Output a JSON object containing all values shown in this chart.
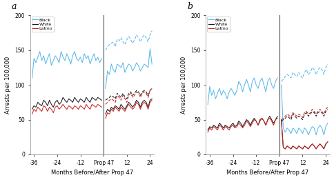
{
  "title_a": "a",
  "title_b": "b",
  "xlabel": "Months Before/After Prop 47",
  "ylabel": "Arrests per 100,000",
  "ylim": [
    0,
    200
  ],
  "yticks": [
    0,
    50,
    100,
    150,
    200
  ],
  "xtick_pos": [
    -36,
    -24,
    -12,
    0,
    12,
    24
  ],
  "xticklabels": [
    "-36",
    "-24",
    "-12",
    "Prop 47",
    "12",
    "24"
  ],
  "legend_labels": [
    "Black",
    "White",
    "Latino"
  ],
  "blue": "#5bb8e8",
  "black_col": "#1a1a1a",
  "red_col": "#cc2222",
  "background": "#ffffff",
  "panel_a": {
    "black_before": [
      110,
      138,
      132,
      140,
      148,
      135,
      142,
      130,
      138,
      145,
      128,
      135,
      142,
      138,
      132,
      148,
      140,
      135,
      145,
      138,
      130,
      142,
      148,
      138,
      135,
      140,
      132,
      145,
      138,
      142,
      130,
      138,
      145,
      135,
      140,
      132,
      138
    ],
    "black_after_act": [
      95,
      120,
      115,
      130,
      122,
      118,
      130,
      128,
      125,
      132,
      118,
      125,
      130,
      128,
      120,
      125,
      132,
      128,
      120,
      125,
      130,
      128,
      125,
      152,
      130
    ],
    "black_after_trend": [
      150,
      155,
      158,
      160,
      162,
      155,
      165,
      163,
      168,
      162,
      158,
      165,
      170,
      165,
      160,
      165,
      172,
      168,
      162,
      168,
      172,
      168,
      162,
      172,
      178
    ],
    "white_before": [
      65,
      70,
      68,
      75,
      72,
      70,
      78,
      75,
      70,
      78,
      72,
      68,
      75,
      78,
      72,
      75,
      82,
      78,
      75,
      80,
      78,
      75,
      82,
      78,
      75,
      80,
      78,
      75,
      82,
      78,
      75,
      82,
      80,
      78,
      82,
      80,
      78
    ],
    "white_after_act": [
      58,
      65,
      62,
      68,
      65,
      70,
      68,
      65,
      72,
      68,
      65,
      70,
      75,
      72,
      68,
      72,
      78,
      75,
      68,
      75,
      78,
      75,
      68,
      78,
      80
    ],
    "white_after_trend": [
      78,
      80,
      82,
      85,
      83,
      80,
      88,
      85,
      82,
      88,
      83,
      80,
      88,
      90,
      85,
      88,
      92,
      90,
      85,
      90,
      92,
      90,
      85,
      92,
      95
    ],
    "latino_before": [
      58,
      65,
      62,
      68,
      65,
      62,
      70,
      68,
      62,
      68,
      65,
      60,
      68,
      70,
      65,
      68,
      72,
      68,
      65,
      70,
      68,
      65,
      70,
      68,
      65,
      70,
      68,
      65,
      72,
      68,
      65,
      72,
      70,
      68,
      72,
      70,
      68
    ],
    "latino_after_act": [
      52,
      60,
      58,
      65,
      62,
      68,
      65,
      62,
      68,
      65,
      62,
      68,
      72,
      68,
      65,
      68,
      75,
      72,
      65,
      72,
      75,
      72,
      65,
      75,
      78
    ],
    "latino_after_trend": [
      72,
      75,
      78,
      80,
      78,
      75,
      85,
      82,
      78,
      85,
      80,
      75,
      85,
      88,
      82,
      85,
      90,
      88,
      82,
      88,
      90,
      88,
      82,
      92,
      95
    ]
  },
  "panel_b": {
    "black_before": [
      72,
      98,
      85,
      92,
      80,
      88,
      95,
      85,
      92,
      88,
      80,
      90,
      95,
      90,
      85,
      92,
      105,
      100,
      90,
      100,
      108,
      100,
      90,
      105,
      110,
      100,
      95,
      105,
      110,
      100,
      90,
      105,
      110,
      100,
      95,
      105,
      110
    ],
    "black_after_act": [
      100,
      38,
      32,
      38,
      35,
      30,
      38,
      35,
      30,
      38,
      35,
      30,
      38,
      35,
      28,
      35,
      40,
      38,
      28,
      38,
      42,
      38,
      28,
      40,
      45
    ],
    "black_after_trend": [
      105,
      108,
      112,
      115,
      113,
      110,
      118,
      115,
      112,
      118,
      113,
      110,
      118,
      122,
      115,
      118,
      125,
      122,
      115,
      122,
      125,
      122,
      115,
      125,
      130
    ],
    "white_before": [
      35,
      40,
      38,
      42,
      40,
      38,
      45,
      42,
      38,
      42,
      40,
      38,
      42,
      45,
      40,
      42,
      48,
      45,
      40,
      45,
      50,
      48,
      42,
      48,
      52,
      48,
      42,
      50,
      52,
      48,
      42,
      50,
      55,
      50,
      45,
      50,
      55
    ],
    "white_after_act": [
      50,
      10,
      8,
      12,
      10,
      8,
      12,
      10,
      8,
      12,
      10,
      8,
      12,
      10,
      8,
      12,
      15,
      12,
      8,
      12,
      15,
      12,
      8,
      15,
      18
    ],
    "white_after_trend": [
      48,
      50,
      52,
      55,
      53,
      50,
      58,
      55,
      52,
      55,
      53,
      50,
      58,
      60,
      55,
      58,
      62,
      60,
      55,
      60,
      62,
      60,
      55,
      62,
      65
    ],
    "latino_before": [
      32,
      38,
      35,
      40,
      38,
      35,
      42,
      40,
      35,
      40,
      38,
      35,
      40,
      42,
      38,
      40,
      45,
      42,
      38,
      42,
      48,
      45,
      40,
      45,
      50,
      48,
      42,
      48,
      52,
      48,
      42,
      50,
      52,
      48,
      42,
      50,
      52
    ],
    "latino_after_act": [
      50,
      10,
      8,
      12,
      10,
      8,
      12,
      10,
      8,
      12,
      10,
      8,
      12,
      10,
      8,
      12,
      15,
      12,
      8,
      12,
      15,
      12,
      8,
      15,
      18
    ],
    "latino_after_trend": [
      50,
      52,
      55,
      58,
      56,
      53,
      60,
      58,
      55,
      58,
      56,
      53,
      60,
      62,
      58,
      60,
      65,
      62,
      58,
      62,
      65,
      62,
      58,
      65,
      68
    ]
  }
}
